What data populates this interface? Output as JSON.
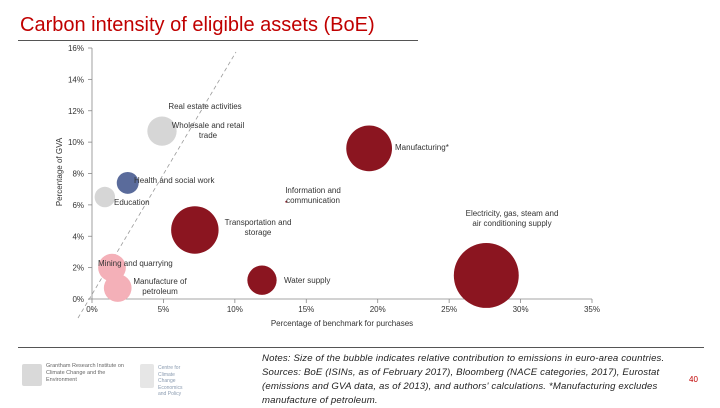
{
  "slide": {
    "title": "Carbon intensity of eligible assets (BoE)",
    "page_number": "40",
    "notes": "Notes: Size of the bubble indicates relative contribution to emissions in euro-area countries. Sources: BoE (ISINs, as of February 2017), Bloomberg (NACE categories, 2017), Eurostat (emissions and GVA data, as of 2013), and authors' calculations. *Manufacturing excludes manufacture of petroleum.",
    "logos": {
      "left_text": "Grantham Research Institute on Climate Change and the Environment",
      "right_text": "Centre for Climate Change Economics and Policy"
    }
  },
  "chart_data": {
    "type": "scatter",
    "title": "",
    "xlabel": "Percentage of benchmark for purchases",
    "ylabel": "Percentage of GVA",
    "xlim": [
      0,
      35
    ],
    "ylim": [
      0,
      16
    ],
    "x_ticks": [
      "0%",
      "5%",
      "10%",
      "15%",
      "20%",
      "25%",
      "30%",
      "35%"
    ],
    "y_ticks": [
      "0%",
      "2%",
      "4%",
      "6%",
      "8%",
      "10%",
      "12%",
      "14%",
      "16%"
    ],
    "reference_line": "dashed diagonal",
    "colors": {
      "dark_red": "#8b1520",
      "pink": "#f4b0b8",
      "light_gray": "#d6d6d6",
      "blue": "#5a6b9b"
    },
    "points": [
      {
        "label": "Real estate activities",
        "x": 4.9,
        "y": 10.7,
        "size": 0.35,
        "color": "#d6d6d6"
      },
      {
        "label": "Wholesale and retail trade",
        "x": 4.9,
        "y": 10.7,
        "size": 0.35,
        "color": "#d6d6d6"
      },
      {
        "label": "Manufacturing*",
        "x": 19.4,
        "y": 9.6,
        "size": 1.1,
        "color": "#8b1520"
      },
      {
        "label": "Health and social work",
        "x": 2.5,
        "y": 7.4,
        "size": 0.15,
        "color": "#5a6b9b"
      },
      {
        "label": "Education",
        "x": 0.9,
        "y": 6.5,
        "size": 0.12,
        "color": "#d6d6d6"
      },
      {
        "label": "Information and communication",
        "x": 13.6,
        "y": 6.2,
        "size": 0.03,
        "color": "#8b1520"
      },
      {
        "label": "Transportation and storage",
        "x": 7.2,
        "y": 4.4,
        "size": 1.2,
        "color": "#8b1520"
      },
      {
        "label": "Electricity, gas, steam and air conditioning supply",
        "x": 27.6,
        "y": 1.5,
        "size": 2.5,
        "color": "#8b1520"
      },
      {
        "label": "Mining and quarrying",
        "x": 1.4,
        "y": 2.0,
        "size": 0.3,
        "color": "#f4b0b8"
      },
      {
        "label": "Manufacture of petroleum",
        "x": 1.8,
        "y": 0.7,
        "size": 0.3,
        "color": "#f4b0b8"
      },
      {
        "label": "Water supply",
        "x": 11.9,
        "y": 1.2,
        "size": 0.35,
        "color": "#8b1520"
      }
    ]
  }
}
